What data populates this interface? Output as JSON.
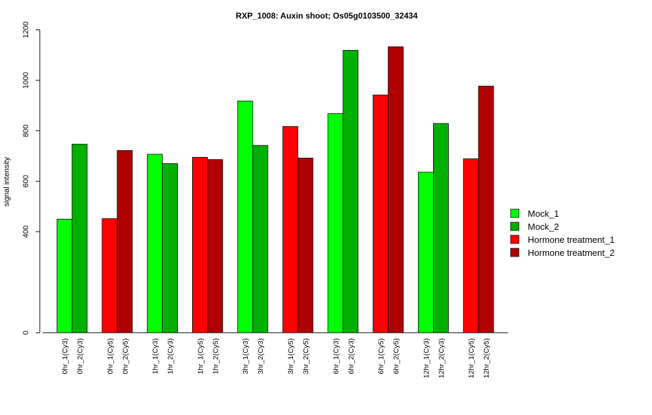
{
  "chart_data": {
    "type": "bar",
    "title": "RXP_1008: Auxin shoot; Os05g0103500_32434",
    "ylabel": "signal intensity",
    "xlabel": "",
    "ylim": [
      0,
      1200
    ],
    "yticks": [
      0,
      400,
      600,
      800,
      1000,
      1200
    ],
    "grid": false,
    "legend_position": "right",
    "legend": [
      {
        "name": "Mock_1",
        "color": "#00ff00"
      },
      {
        "name": "Mock_2",
        "color": "#00b000"
      },
      {
        "name": "Hormone treatment_1",
        "color": "#ff0000"
      },
      {
        "name": "Hormone treatment_2",
        "color": "#b00000"
      }
    ],
    "groups": [
      {
        "bars": [
          {
            "label": "0hr_1(Cy3)",
            "value": 450,
            "series": 0
          },
          {
            "label": "0hr_2(Cy3)",
            "value": 747,
            "series": 1
          }
        ]
      },
      {
        "bars": [
          {
            "label": "0hr_1(Cy5)",
            "value": 452,
            "series": 2
          },
          {
            "label": "0hr_2(Cy5)",
            "value": 722,
            "series": 3
          }
        ]
      },
      {
        "bars": [
          {
            "label": "1hr_1(Cy3)",
            "value": 707,
            "series": 0
          },
          {
            "label": "1hr_2(Cy3)",
            "value": 670,
            "series": 1
          }
        ]
      },
      {
        "bars": [
          {
            "label": "1hr_1(Cy5)",
            "value": 695,
            "series": 2
          },
          {
            "label": "1hr_2(Cy5)",
            "value": 686,
            "series": 3
          }
        ]
      },
      {
        "bars": [
          {
            "label": "3hr_1(Cy3)",
            "value": 918,
            "series": 0
          },
          {
            "label": "3hr_2(Cy3)",
            "value": 742,
            "series": 1
          }
        ]
      },
      {
        "bars": [
          {
            "label": "3hr_1(Cy5)",
            "value": 817,
            "series": 2
          },
          {
            "label": "3hr_2(Cy5)",
            "value": 692,
            "series": 3
          }
        ]
      },
      {
        "bars": [
          {
            "label": "6hr_1(Cy3)",
            "value": 868,
            "series": 0
          },
          {
            "label": "6hr_2(Cy3)",
            "value": 1119,
            "series": 1
          }
        ]
      },
      {
        "bars": [
          {
            "label": "6hr_1(Cy5)",
            "value": 942,
            "series": 2
          },
          {
            "label": "6hr_2(Cy5)",
            "value": 1133,
            "series": 3
          }
        ]
      },
      {
        "bars": [
          {
            "label": "12hr_1(Cy3)",
            "value": 636,
            "series": 0
          },
          {
            "label": "12hr_2(Cy3)",
            "value": 829,
            "series": 1
          }
        ]
      },
      {
        "bars": [
          {
            "label": "12hr_1(Cy5)",
            "value": 689,
            "series": 2
          },
          {
            "label": "12hr_2(Cy5)",
            "value": 977,
            "series": 3
          }
        ]
      }
    ]
  }
}
